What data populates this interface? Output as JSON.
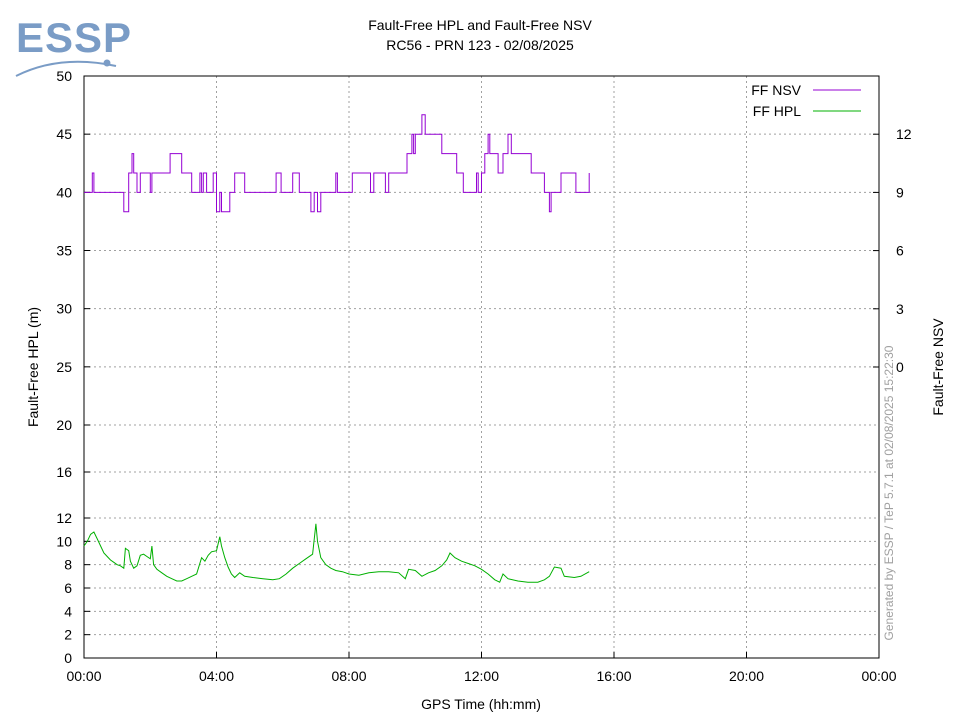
{
  "logo": {
    "text": "ESSP",
    "color": "#7a9cc6"
  },
  "chart_data": {
    "type": "line",
    "title": "Fault-Free HPL and Fault-Free NSV",
    "subtitle": "RC56 - PRN 123 - 02/08/2025",
    "xlabel": "GPS Time (hh:mm)",
    "ylabel": "Fault-Free HPL (m)",
    "y2label": "Fault-Free NSV",
    "watermark": "Generated by ESSP / TeP 5.7.1 at 02/08/2025 15:22:30",
    "x_ticks": [
      "00:00",
      "04:00",
      "08:00",
      "12:00",
      "16:00",
      "20:00",
      "00:00"
    ],
    "xlim_hours": [
      0,
      24
    ],
    "y_ticks": [
      0,
      2,
      4,
      6,
      8,
      10,
      12,
      16,
      20,
      25,
      30,
      35,
      40,
      45,
      50
    ],
    "y2_ticks": [
      0,
      3,
      6,
      9,
      12
    ],
    "grid": true,
    "legend_position": "top-right",
    "series": [
      {
        "name": "FF NSV",
        "axis": "right",
        "color": "#9400d3",
        "step": true,
        "points": [
          [
            0.0,
            9
          ],
          [
            0.25,
            10
          ],
          [
            0.3,
            9
          ],
          [
            1.2,
            8
          ],
          [
            1.35,
            10
          ],
          [
            1.45,
            11
          ],
          [
            1.5,
            10
          ],
          [
            1.6,
            9
          ],
          [
            1.7,
            10
          ],
          [
            2.0,
            9
          ],
          [
            2.05,
            10
          ],
          [
            2.6,
            11
          ],
          [
            2.95,
            10
          ],
          [
            3.25,
            9
          ],
          [
            3.5,
            10
          ],
          [
            3.55,
            9
          ],
          [
            3.6,
            10
          ],
          [
            3.7,
            9
          ],
          [
            3.9,
            10
          ],
          [
            4.0,
            8
          ],
          [
            4.1,
            9
          ],
          [
            4.15,
            8
          ],
          [
            4.4,
            9
          ],
          [
            4.55,
            10
          ],
          [
            4.85,
            9
          ],
          [
            5.8,
            10
          ],
          [
            5.95,
            9
          ],
          [
            6.3,
            10
          ],
          [
            6.5,
            9
          ],
          [
            6.85,
            8
          ],
          [
            6.95,
            9
          ],
          [
            7.05,
            8
          ],
          [
            7.15,
            9
          ],
          [
            7.6,
            10
          ],
          [
            7.65,
            9
          ],
          [
            8.1,
            10
          ],
          [
            8.65,
            9
          ],
          [
            8.75,
            10
          ],
          [
            9.1,
            9
          ],
          [
            9.2,
            10
          ],
          [
            9.75,
            11
          ],
          [
            9.9,
            12
          ],
          [
            9.95,
            11
          ],
          [
            10.0,
            12
          ],
          [
            10.2,
            13
          ],
          [
            10.3,
            12
          ],
          [
            10.8,
            11
          ],
          [
            11.25,
            10
          ],
          [
            11.45,
            9
          ],
          [
            11.85,
            10
          ],
          [
            11.9,
            9
          ],
          [
            12.0,
            10
          ],
          [
            12.1,
            11
          ],
          [
            12.2,
            12
          ],
          [
            12.25,
            11
          ],
          [
            12.5,
            10
          ],
          [
            12.65,
            11
          ],
          [
            12.8,
            12
          ],
          [
            12.9,
            11
          ],
          [
            13.5,
            10
          ],
          [
            13.9,
            9
          ],
          [
            14.05,
            8
          ],
          [
            14.1,
            9
          ],
          [
            14.4,
            10
          ],
          [
            14.85,
            9
          ],
          [
            15.25,
            10
          ]
        ]
      },
      {
        "name": "FF HPL",
        "axis": "left",
        "color": "#00b000",
        "step": false,
        "points": [
          [
            0.0,
            9.6
          ],
          [
            0.1,
            10.0
          ],
          [
            0.2,
            10.6
          ],
          [
            0.3,
            10.8
          ],
          [
            0.4,
            10.2
          ],
          [
            0.5,
            9.6
          ],
          [
            0.6,
            9.0
          ],
          [
            0.7,
            8.7
          ],
          [
            0.8,
            8.4
          ],
          [
            0.9,
            8.2
          ],
          [
            1.0,
            8.0
          ],
          [
            1.1,
            7.9
          ],
          [
            1.2,
            7.7
          ],
          [
            1.25,
            9.4
          ],
          [
            1.35,
            9.2
          ],
          [
            1.4,
            8.3
          ],
          [
            1.5,
            7.7
          ],
          [
            1.6,
            7.9
          ],
          [
            1.7,
            8.8
          ],
          [
            1.8,
            8.9
          ],
          [
            1.9,
            8.7
          ],
          [
            2.0,
            8.5
          ],
          [
            2.05,
            9.6
          ],
          [
            2.1,
            8.0
          ],
          [
            2.2,
            7.6
          ],
          [
            2.35,
            7.3
          ],
          [
            2.5,
            7.0
          ],
          [
            2.65,
            6.8
          ],
          [
            2.8,
            6.6
          ],
          [
            2.95,
            6.6
          ],
          [
            3.1,
            6.8
          ],
          [
            3.25,
            7.0
          ],
          [
            3.4,
            7.2
          ],
          [
            3.55,
            8.6
          ],
          [
            3.65,
            8.3
          ],
          [
            3.75,
            8.8
          ],
          [
            3.85,
            9.1
          ],
          [
            4.0,
            9.2
          ],
          [
            4.1,
            10.4
          ],
          [
            4.15,
            9.6
          ],
          [
            4.25,
            8.6
          ],
          [
            4.35,
            7.8
          ],
          [
            4.45,
            7.2
          ],
          [
            4.55,
            6.9
          ],
          [
            4.7,
            7.3
          ],
          [
            4.85,
            7.0
          ],
          [
            5.1,
            6.9
          ],
          [
            5.4,
            6.8
          ],
          [
            5.7,
            6.7
          ],
          [
            5.9,
            6.8
          ],
          [
            6.1,
            7.2
          ],
          [
            6.3,
            7.7
          ],
          [
            6.5,
            8.1
          ],
          [
            6.7,
            8.5
          ],
          [
            6.9,
            8.9
          ],
          [
            7.0,
            11.5
          ],
          [
            7.05,
            10.0
          ],
          [
            7.15,
            8.6
          ],
          [
            7.3,
            8.0
          ],
          [
            7.45,
            7.7
          ],
          [
            7.6,
            7.5
          ],
          [
            7.8,
            7.4
          ],
          [
            8.0,
            7.2
          ],
          [
            8.3,
            7.1
          ],
          [
            8.6,
            7.3
          ],
          [
            8.9,
            7.4
          ],
          [
            9.2,
            7.4
          ],
          [
            9.5,
            7.3
          ],
          [
            9.7,
            6.8
          ],
          [
            9.8,
            7.6
          ],
          [
            10.0,
            7.5
          ],
          [
            10.2,
            7.0
          ],
          [
            10.4,
            7.3
          ],
          [
            10.6,
            7.5
          ],
          [
            10.8,
            7.9
          ],
          [
            10.95,
            8.4
          ],
          [
            11.05,
            9.0
          ],
          [
            11.2,
            8.6
          ],
          [
            11.4,
            8.3
          ],
          [
            11.6,
            8.1
          ],
          [
            11.8,
            7.9
          ],
          [
            12.0,
            7.6
          ],
          [
            12.2,
            7.2
          ],
          [
            12.4,
            6.7
          ],
          [
            12.55,
            6.5
          ],
          [
            12.65,
            7.2
          ],
          [
            12.8,
            6.8
          ],
          [
            13.1,
            6.6
          ],
          [
            13.4,
            6.5
          ],
          [
            13.7,
            6.5
          ],
          [
            13.9,
            6.7
          ],
          [
            14.05,
            7.0
          ],
          [
            14.2,
            7.8
          ],
          [
            14.4,
            7.7
          ],
          [
            14.5,
            7.0
          ],
          [
            14.8,
            6.9
          ],
          [
            15.0,
            7.0
          ],
          [
            15.25,
            7.4
          ]
        ]
      }
    ]
  }
}
